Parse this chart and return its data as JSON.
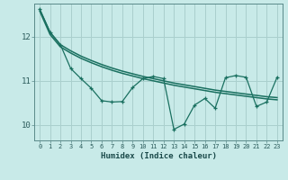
{
  "xlabel": "Humidex (Indice chaleur)",
  "background_color": "#c8eae8",
  "grid_color": "#aacfcd",
  "line_color": "#1a7060",
  "xlim": [
    -0.5,
    23.5
  ],
  "ylim": [
    9.65,
    12.75
  ],
  "yticks": [
    10,
    11,
    12
  ],
  "xticks": [
    0,
    1,
    2,
    3,
    4,
    5,
    6,
    7,
    8,
    9,
    10,
    11,
    12,
    13,
    14,
    15,
    16,
    17,
    18,
    19,
    20,
    21,
    22,
    23
  ],
  "line1_x": [
    0,
    1,
    2,
    3,
    4,
    5,
    6,
    7,
    8,
    9,
    10,
    11,
    12,
    13,
    14,
    15,
    16,
    17,
    18,
    19,
    20,
    21,
    22,
    23
  ],
  "line1_y": [
    12.62,
    12.1,
    11.82,
    11.68,
    11.56,
    11.46,
    11.37,
    11.29,
    11.22,
    11.16,
    11.1,
    11.05,
    11.0,
    10.95,
    10.91,
    10.87,
    10.83,
    10.79,
    10.76,
    10.73,
    10.7,
    10.67,
    10.64,
    10.62
  ],
  "line2_x": [
    0,
    1,
    2,
    3,
    4,
    5,
    6,
    7,
    8,
    9,
    10,
    11,
    12,
    13,
    14,
    15,
    16,
    17,
    18,
    19,
    20,
    21,
    22,
    23
  ],
  "line2_y": [
    12.58,
    12.05,
    11.77,
    11.63,
    11.51,
    11.41,
    11.32,
    11.24,
    11.17,
    11.11,
    11.05,
    11.0,
    10.95,
    10.9,
    10.86,
    10.82,
    10.78,
    10.74,
    10.71,
    10.68,
    10.65,
    10.62,
    10.59,
    10.57
  ],
  "line3_x": [
    0,
    1,
    2,
    3,
    4,
    5,
    6,
    7,
    8,
    9,
    10,
    11,
    12,
    13,
    14,
    15,
    16,
    17,
    18,
    19,
    20,
    21,
    22,
    23
  ],
  "line3_y": [
    12.62,
    12.1,
    11.82,
    11.28,
    11.05,
    10.83,
    10.55,
    10.52,
    10.53,
    10.85,
    11.05,
    11.1,
    11.05,
    9.9,
    10.02,
    10.45,
    10.6,
    10.38,
    11.07,
    11.12,
    11.08,
    10.42,
    10.52,
    11.08
  ]
}
